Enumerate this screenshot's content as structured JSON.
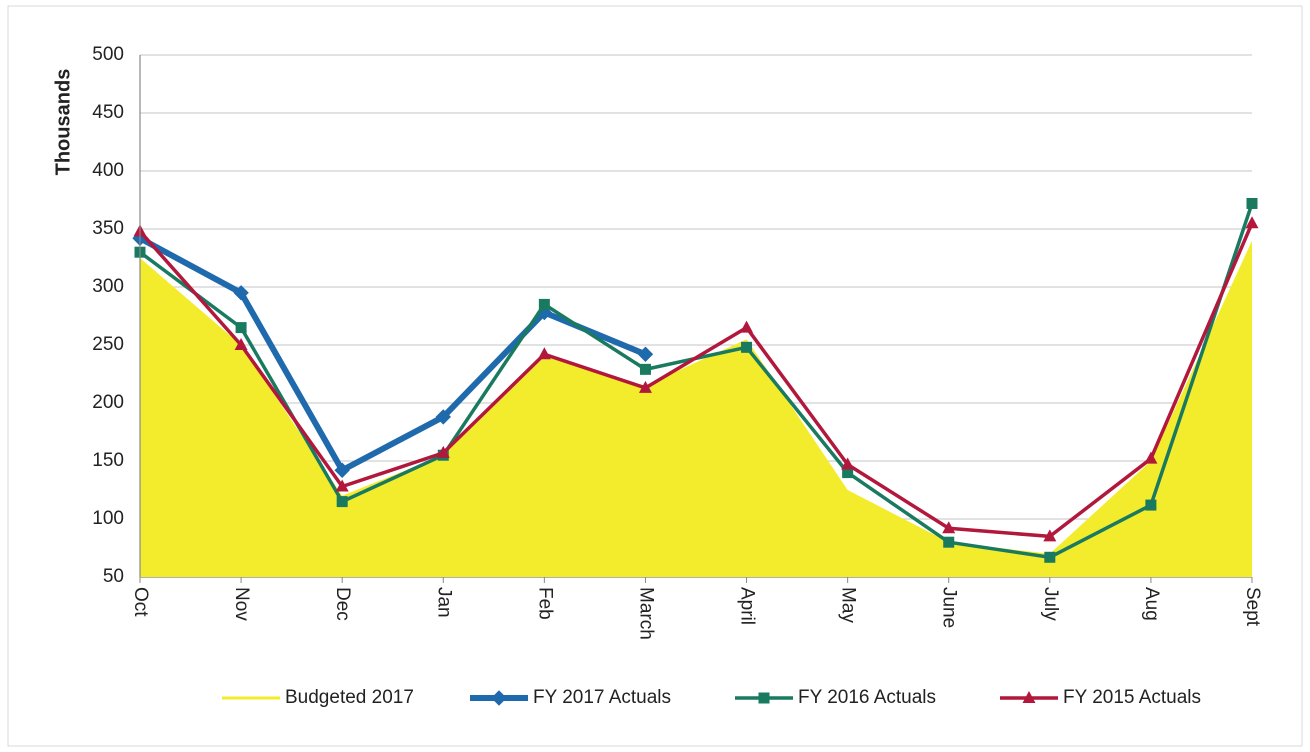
{
  "chart_data": {
    "type": "line",
    "y_label": "Thousands",
    "categories": [
      "Oct",
      "Nov",
      "Dec",
      "Jan",
      "Feb",
      "March",
      "April",
      "May",
      "June",
      "July",
      "Aug",
      "Sept"
    ],
    "ylim": [
      50,
      500
    ],
    "yticks": [
      50,
      100,
      150,
      200,
      250,
      300,
      350,
      400,
      450,
      500
    ],
    "grid": true,
    "legend": "bottom",
    "series": [
      {
        "name": "Budgeted 2017",
        "color": "#f2ec2c",
        "style": "area",
        "values": [
          325,
          250,
          120,
          155,
          240,
          215,
          255,
          125,
          80,
          70,
          150,
          340
        ]
      },
      {
        "name": "FY 2017  Actuals",
        "color": "#1f69ad",
        "style": "line",
        "marker": "diamond",
        "values": [
          342,
          295,
          142,
          188,
          278,
          242,
          null,
          null,
          null,
          null,
          null,
          null
        ]
      },
      {
        "name": "FY 2016  Actuals",
        "color": "#197a60",
        "style": "line",
        "marker": "square",
        "values": [
          330,
          265,
          115,
          155,
          285,
          229,
          248,
          140,
          80,
          67,
          112,
          372
        ]
      },
      {
        "name": "FY 2015 Actuals",
        "color": "#b2173c",
        "style": "line",
        "marker": "triangle",
        "values": [
          348,
          250,
          128,
          157,
          242,
          213,
          265,
          147,
          92,
          85,
          152,
          355
        ]
      }
    ]
  }
}
